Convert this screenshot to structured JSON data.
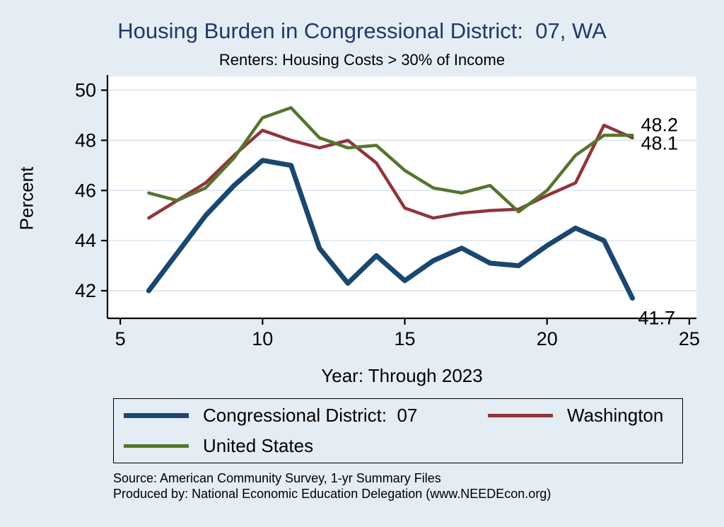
{
  "title": "Housing Burden in Congressional District:  07, WA",
  "subtitle": "Renters: Housing Costs > 30% of Income",
  "chart_data": {
    "type": "line",
    "x": [
      6,
      7,
      8,
      9,
      10,
      11,
      12,
      13,
      14,
      15,
      16,
      17,
      18,
      19,
      20,
      21,
      22,
      23
    ],
    "series": [
      {
        "name": "Congressional District:  07",
        "color": "#1a476f",
        "line_width": 7,
        "values": [
          42.0,
          43.5,
          45.0,
          46.2,
          47.2,
          47.0,
          43.7,
          42.3,
          43.4,
          42.4,
          43.2,
          43.7,
          43.1,
          43.0,
          43.8,
          44.5,
          44.0,
          41.7
        ]
      },
      {
        "name": "Washington",
        "color": "#90353b",
        "line_width": 4.5,
        "values": [
          44.9,
          45.6,
          46.3,
          47.4,
          48.4,
          48.0,
          47.7,
          48.0,
          47.1,
          45.3,
          44.9,
          45.1,
          45.2,
          45.25,
          45.8,
          46.3,
          48.6,
          48.1
        ]
      },
      {
        "name": "United States",
        "color": "#55752f",
        "line_width": 4.5,
        "values": [
          45.9,
          45.6,
          46.1,
          47.3,
          48.9,
          49.3,
          48.1,
          47.7,
          47.8,
          46.8,
          46.1,
          45.9,
          46.2,
          45.15,
          46.0,
          47.4,
          48.2,
          48.2
        ]
      }
    ],
    "xlabel": "Year: Through 2023",
    "ylabel": "Percent",
    "xlim": [
      4.55,
      25.25
    ],
    "ylim": [
      40.9,
      50.55
    ],
    "xticks": [
      5,
      10,
      15,
      20,
      25
    ],
    "yticks": [
      42,
      44,
      46,
      48,
      50
    ],
    "grid": "horizontal",
    "legend_position": "bottom",
    "end_labels": [
      {
        "text": "48.2",
        "x": 23.3,
        "y": 48.62
      },
      {
        "text": "48.1",
        "x": 23.3,
        "y": 47.88
      },
      {
        "text": "41.7",
        "x": 23.2,
        "y": 40.92
      }
    ]
  },
  "source_line1": "Source: American Community Survey, 1-yr Summary Files",
  "source_line2": "Produced by: National Economic Education Delegation (www.NEEDEcon.org)",
  "colors": {
    "background": "#e4ecf4",
    "title": "#1f3a68",
    "plot_background": "#ffffff",
    "grid": "#d7e3ee",
    "axis": "#000000"
  }
}
